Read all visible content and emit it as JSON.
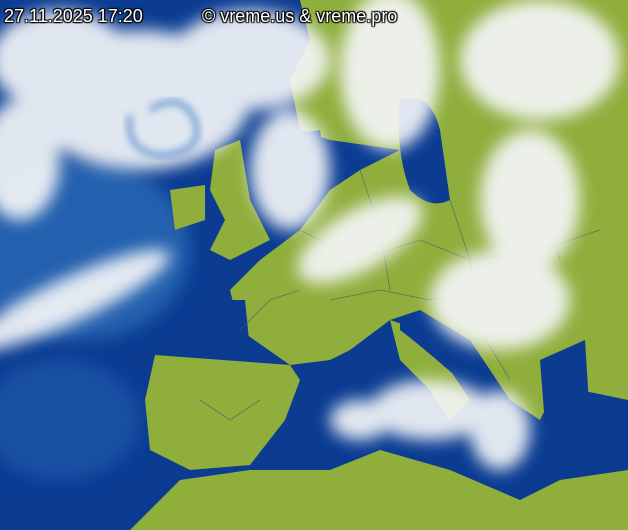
{
  "timestamp": "27.11.2025 17:20",
  "copyright": "© vreme.us & vreme.pro",
  "colors": {
    "sea": "#0a3a8f",
    "land": "#8fae3c",
    "cloud": "#f4f6f8",
    "borders": "#555566"
  }
}
